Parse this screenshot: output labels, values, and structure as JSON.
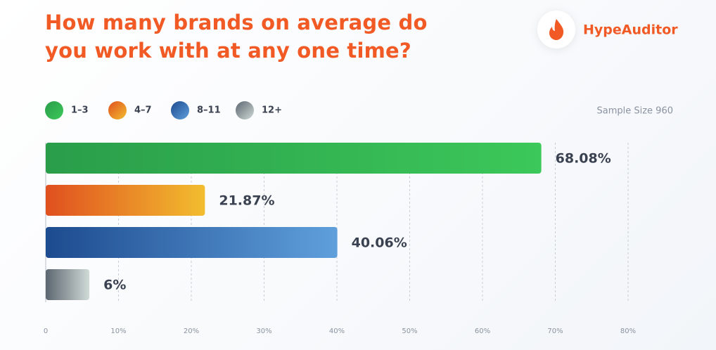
{
  "chart_data": {
    "type": "hbar",
    "title": "How many brands on average do you work with at any one time?",
    "brand": "HypeAuditor",
    "note": "Sample Size 960",
    "categories": [
      "1–3",
      "4–7",
      "8–11",
      "12+"
    ],
    "values": [
      68.08,
      21.87,
      40.06,
      6
    ],
    "value_labels": [
      "68.08%",
      "21.87%",
      "40.06%",
      "6%"
    ],
    "colors": [
      [
        "#2a9d4a",
        "#3cc85a"
      ],
      [
        "#e0501f",
        "#f2bd2f"
      ],
      [
        "#1d4b8f",
        "#5f9fdc"
      ],
      [
        "#5c6670",
        "#d0dad6"
      ]
    ],
    "xlim": [
      0,
      80
    ],
    "xticks": [
      0,
      {
        "value": 10,
        "label": "10%"
      },
      {
        "value": 20,
        "label": "20%"
      },
      {
        "value": 30,
        "label": "30%"
      },
      {
        "value": 40,
        "label": "40%"
      },
      {
        "value": 50,
        "label": "50%"
      },
      {
        "value": 60,
        "label": "60%"
      },
      {
        "value": 70,
        "label": "70%"
      },
      {
        "value": 80,
        "label": "80%"
      }
    ],
    "grid": true
  }
}
